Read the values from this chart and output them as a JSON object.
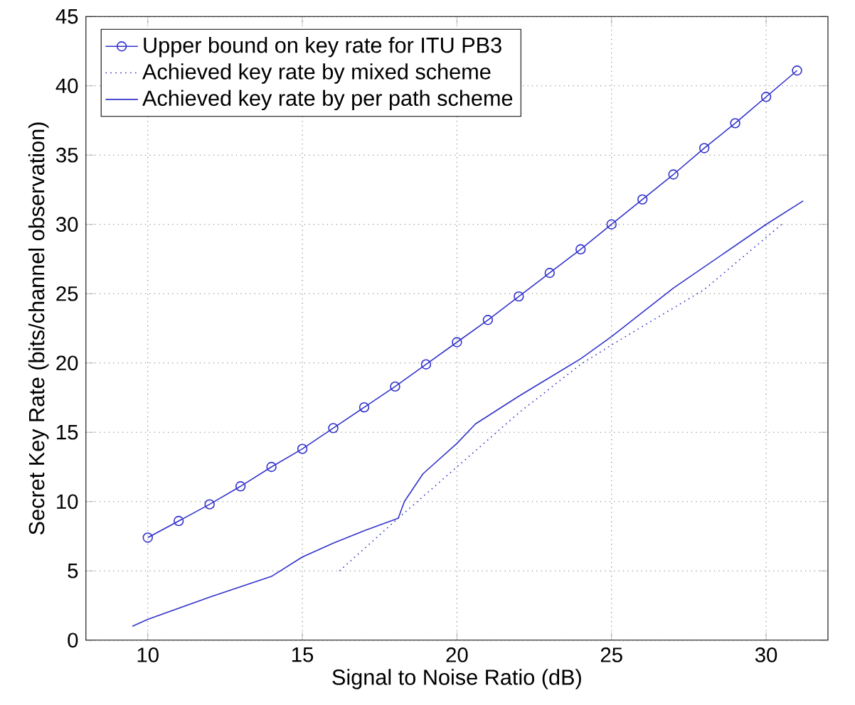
{
  "chart_data": {
    "type": "line",
    "xlabel": "Signal to Noise Ratio (dB)",
    "ylabel": "Secret Key Rate (bits/channel observation)",
    "xlim": [
      8,
      32
    ],
    "ylim": [
      0,
      45
    ],
    "xticks": [
      10,
      15,
      20,
      25,
      30
    ],
    "yticks": [
      0,
      5,
      10,
      15,
      20,
      25,
      30,
      35,
      40,
      45
    ],
    "grid": true,
    "legend": "top left",
    "series": [
      {
        "name": "Upper bound on key rate for ITU PB3",
        "color": "#3333cc",
        "marker": "circle",
        "line_style": "solid",
        "x": [
          10,
          11,
          12,
          13,
          14,
          15,
          16,
          17,
          18,
          19,
          20,
          21,
          22,
          23,
          24,
          25,
          26,
          27,
          28,
          29,
          30,
          31
        ],
        "values": [
          7.4,
          8.6,
          9.8,
          11.1,
          12.5,
          13.8,
          15.3,
          16.8,
          18.3,
          19.9,
          21.5,
          23.1,
          24.8,
          26.5,
          28.2,
          30.0,
          31.8,
          33.6,
          35.5,
          37.3,
          39.2,
          41.1
        ]
      },
      {
        "name": "Achieved key rate by mixed scheme",
        "color": "#3333cc",
        "marker": "none",
        "line_style": "dotted",
        "x": [
          16.2,
          18.1,
          20,
          22,
          24,
          25,
          28,
          30.5
        ],
        "values": [
          5.0,
          8.8,
          12.5,
          16.4,
          19.9,
          21.3,
          25.3,
          30.0
        ]
      },
      {
        "name": "Achieved key rate by per path scheme",
        "color": "#3333cc",
        "marker": "none",
        "line_style": "solid",
        "x": [
          9.5,
          10,
          12,
          14,
          15,
          16,
          17,
          18.1,
          18.3,
          18.9,
          20,
          20.6,
          22,
          24,
          25,
          27,
          30,
          31.2
        ],
        "values": [
          1.0,
          1.5,
          3.1,
          4.6,
          6.0,
          7.0,
          7.9,
          8.8,
          10.0,
          12.0,
          14.2,
          15.6,
          17.6,
          20.3,
          21.9,
          25.4,
          30.0,
          31.7
        ]
      }
    ]
  }
}
